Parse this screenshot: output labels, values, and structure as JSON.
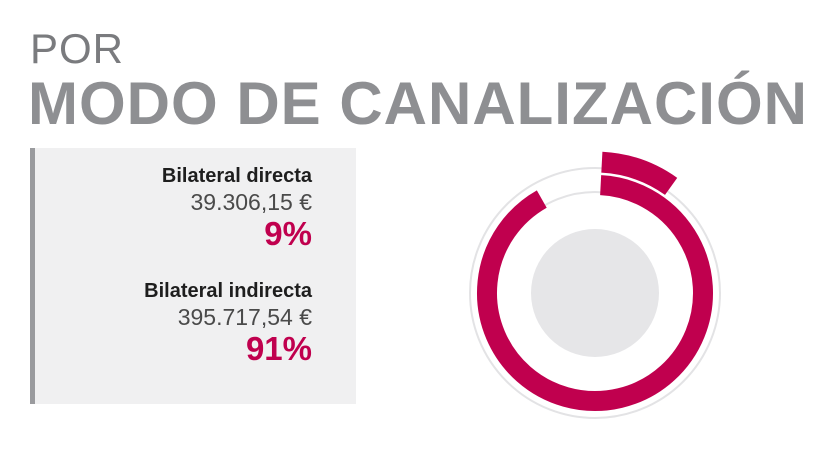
{
  "title": {
    "pre": "POR",
    "main": "MODO DE CANALIZACIÓN"
  },
  "legend": {
    "items": [
      {
        "label": "Bilateral directa",
        "amount": "39.306,15 €",
        "percent_text": "9%"
      },
      {
        "label": "Bilateral indirecta",
        "amount": "395.717,54 €",
        "percent_text": "91%"
      }
    ]
  },
  "colors": {
    "accent": "#c0004e",
    "title_gray": "#8e8f92",
    "panel_bg": "#f0f0f1",
    "ring_track": "#e3e3e5",
    "center_disc": "#e6e6e8"
  },
  "chart_data": {
    "type": "pie",
    "style": "concentric-ring",
    "categories": [
      "Bilateral directa",
      "Bilateral indirecta"
    ],
    "values": [
      39306.15,
      395717.54
    ],
    "percentages": [
      9,
      91
    ],
    "units": "€"
  }
}
